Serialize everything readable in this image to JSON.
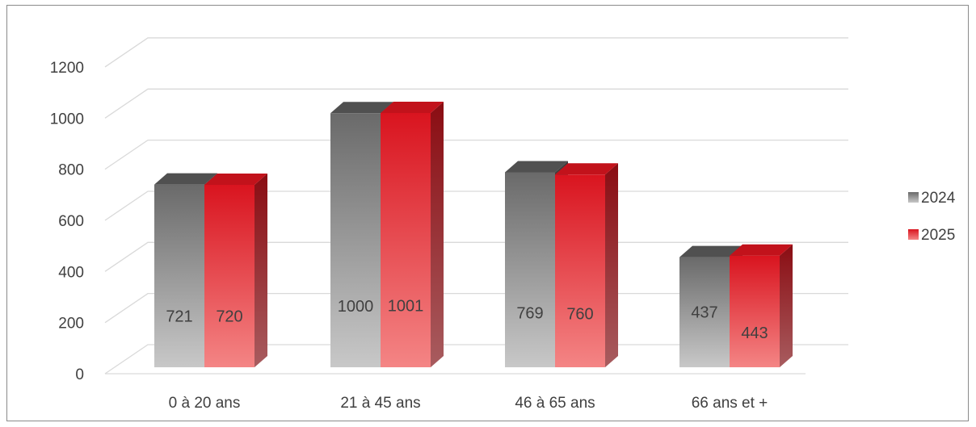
{
  "chart_data": {
    "type": "bar",
    "categories": [
      "0 à 20 ans",
      "21 à 45 ans",
      "46 à 65 ans",
      "66 ans et +"
    ],
    "series": [
      {
        "name": "2024",
        "values": [
          721,
          1000,
          769,
          437
        ],
        "color": "#6e6e6e"
      },
      {
        "name": "2025",
        "values": [
          720,
          1001,
          760,
          443
        ],
        "color": "#e0202a"
      }
    ],
    "ylim": [
      0,
      1200
    ],
    "yticks": [
      "0",
      "200",
      "400",
      "600",
      "800",
      "1000",
      "1200"
    ],
    "grid": true,
    "three_d": true,
    "legend_position": "right"
  }
}
